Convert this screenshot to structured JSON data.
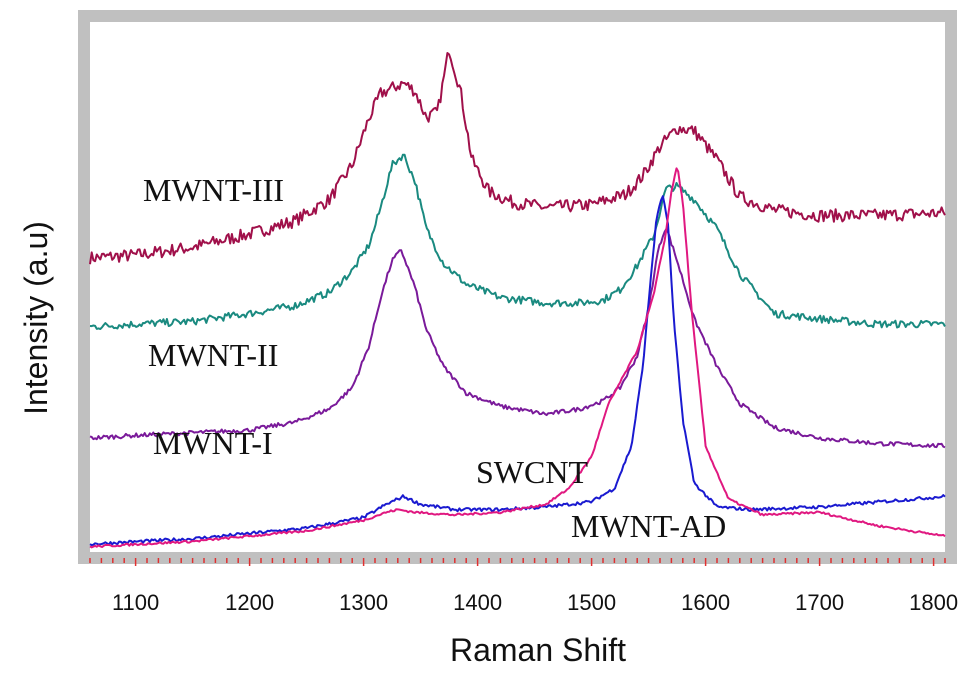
{
  "chart_data": {
    "type": "line",
    "title": "",
    "xlabel": "Raman Shift",
    "ylabel": "Intensity (a.u)",
    "xlim": [
      1060,
      1810
    ],
    "ylim": [
      0,
      1
    ],
    "x_ticks": [
      1100,
      1200,
      1300,
      1400,
      1500,
      1600,
      1700,
      1800
    ],
    "y_ticks_shown": false,
    "grid": false,
    "legend": "none (series labelled directly on plot)",
    "frame_color": "#c0c0c0",
    "minor_tick_color": "#e03030",
    "series": [
      {
        "name": "MWNT-III",
        "color": "#a0104a",
        "x": [
          1060,
          1100,
          1150,
          1200,
          1240,
          1270,
          1290,
          1305,
          1315,
          1325,
          1335,
          1345,
          1355,
          1365,
          1375,
          1385,
          1395,
          1410,
          1430,
          1460,
          1500,
          1530,
          1545,
          1560,
          1575,
          1590,
          1610,
          1630,
          1660,
          1700,
          1750,
          1810
        ],
        "y": [
          0.555,
          0.56,
          0.575,
          0.6,
          0.625,
          0.665,
          0.73,
          0.82,
          0.865,
          0.875,
          0.885,
          0.87,
          0.82,
          0.83,
          0.95,
          0.87,
          0.74,
          0.68,
          0.66,
          0.65,
          0.655,
          0.675,
          0.71,
          0.765,
          0.8,
          0.795,
          0.74,
          0.67,
          0.645,
          0.635,
          0.635,
          0.64
        ]
      },
      {
        "name": "MWNT-II",
        "color": "#1a8a80",
        "x": [
          1060,
          1100,
          1150,
          1200,
          1240,
          1270,
          1290,
          1305,
          1315,
          1325,
          1335,
          1345,
          1355,
          1370,
          1390,
          1420,
          1460,
          1490,
          1510,
          1525,
          1540,
          1555,
          1565,
          1575,
          1590,
          1610,
          1630,
          1660,
          1700,
          1750,
          1810
        ],
        "y": [
          0.425,
          0.43,
          0.435,
          0.45,
          0.465,
          0.49,
          0.53,
          0.58,
          0.65,
          0.73,
          0.75,
          0.7,
          0.61,
          0.545,
          0.505,
          0.48,
          0.47,
          0.47,
          0.475,
          0.495,
          0.54,
          0.6,
          0.685,
          0.69,
          0.665,
          0.61,
          0.525,
          0.45,
          0.44,
          0.43,
          0.43
        ]
      },
      {
        "name": "MWNT-I",
        "color": "#7a1a9a",
        "x": [
          1060,
          1100,
          1150,
          1200,
          1240,
          1270,
          1290,
          1305,
          1315,
          1325,
          1333,
          1345,
          1355,
          1370,
          1390,
          1420,
          1460,
          1490,
          1510,
          1525,
          1540,
          1550,
          1558,
          1565,
          1575,
          1590,
          1610,
          1630,
          1660,
          1700,
          1750,
          1810
        ],
        "y": [
          0.215,
          0.22,
          0.225,
          0.23,
          0.245,
          0.27,
          0.31,
          0.39,
          0.48,
          0.55,
          0.57,
          0.5,
          0.42,
          0.35,
          0.3,
          0.275,
          0.26,
          0.27,
          0.285,
          0.31,
          0.37,
          0.46,
          0.565,
          0.615,
          0.55,
          0.44,
          0.35,
          0.28,
          0.235,
          0.215,
          0.205,
          0.2
        ]
      },
      {
        "name": "MWNT-AD",
        "color": "#1a1ad0",
        "x": [
          1060,
          1150,
          1250,
          1300,
          1320,
          1335,
          1350,
          1380,
          1420,
          1460,
          1500,
          1520,
          1535,
          1545,
          1552,
          1557,
          1562,
          1567,
          1572,
          1580,
          1590,
          1610,
          1640,
          1700,
          1810
        ],
        "y": [
          0.015,
          0.025,
          0.045,
          0.065,
          0.09,
          0.105,
          0.09,
          0.08,
          0.08,
          0.085,
          0.095,
          0.12,
          0.2,
          0.35,
          0.52,
          0.63,
          0.675,
          0.62,
          0.44,
          0.25,
          0.13,
          0.085,
          0.08,
          0.085,
          0.105
        ]
      },
      {
        "name": "SWCNT",
        "color": "#e01880",
        "x": [
          1060,
          1150,
          1250,
          1300,
          1320,
          1330,
          1345,
          1380,
          1420,
          1460,
          1480,
          1500,
          1515,
          1525,
          1540,
          1555,
          1565,
          1570,
          1575,
          1580,
          1588,
          1600,
          1620,
          1650,
          1700,
          1750,
          1810
        ],
        "y": [
          0.01,
          0.02,
          0.04,
          0.06,
          0.075,
          0.08,
          0.075,
          0.07,
          0.075,
          0.09,
          0.12,
          0.18,
          0.28,
          0.32,
          0.38,
          0.49,
          0.6,
          0.68,
          0.73,
          0.66,
          0.45,
          0.2,
          0.1,
          0.07,
          0.075,
          0.05,
          0.03
        ]
      }
    ]
  },
  "labels": {
    "mwnt_iii": "MWNT-III",
    "mwnt_ii": "MWNT-II",
    "mwnt_i": "MWNT-I",
    "swcnt": "SWCNT",
    "mwnt_ad": "MWNT-AD"
  }
}
